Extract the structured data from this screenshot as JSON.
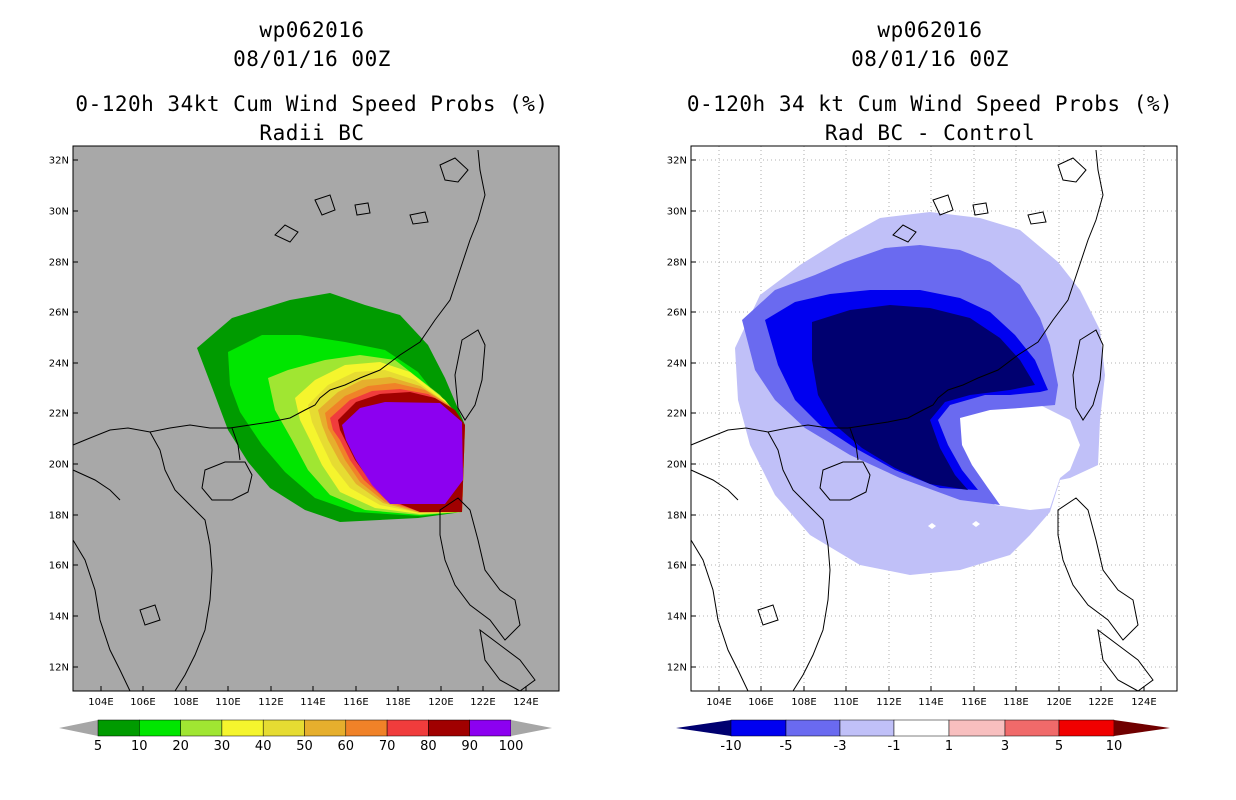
{
  "left": {
    "title_lines": [
      "wp062016",
      "08/01/16 00Z",
      "0-120h 34kt Cum Wind Speed Probs (%)",
      "Radii BC"
    ],
    "colorbar": {
      "labels": [
        "5",
        "10",
        "20",
        "30",
        "40",
        "50",
        "60",
        "70",
        "80",
        "90",
        "100"
      ],
      "colors": [
        "#009b00",
        "#00e600",
        "#a0e632",
        "#f5f52d",
        "#e6dc32",
        "#e6af2d",
        "#f08228",
        "#f03c3c",
        "#a00000",
        "#8c00f0"
      ],
      "under_color": "#a6a6a6",
      "over_color": "#a6a6a6"
    },
    "background_color": "#a8a8a8"
  },
  "right": {
    "title_lines": [
      "wp062016",
      "08/01/16 00Z",
      "0-120h 34 kt Cum Wind Speed Probs (%)",
      "Rad BC - Control"
    ],
    "colorbar": {
      "labels": [
        "-10",
        "-5",
        "-3",
        "-1",
        "1",
        "3",
        "5",
        "10"
      ],
      "colors": [
        "#000070",
        "#0000f0",
        "#6a6af0",
        "#c0c0f8",
        "#ffffff",
        "#f8bfbf",
        "#f06a6a",
        "#f00000",
        "#700000"
      ]
    },
    "background_color": "#ffffff"
  },
  "map": {
    "lat_labels": [
      "32N",
      "30N",
      "28N",
      "26N",
      "24N",
      "22N",
      "20N",
      "18N",
      "16N",
      "14N",
      "12N"
    ],
    "lon_labels": [
      "104E",
      "106E",
      "108E",
      "110E",
      "112E",
      "114E",
      "116E",
      "118E",
      "120E",
      "122E",
      "124E"
    ]
  }
}
